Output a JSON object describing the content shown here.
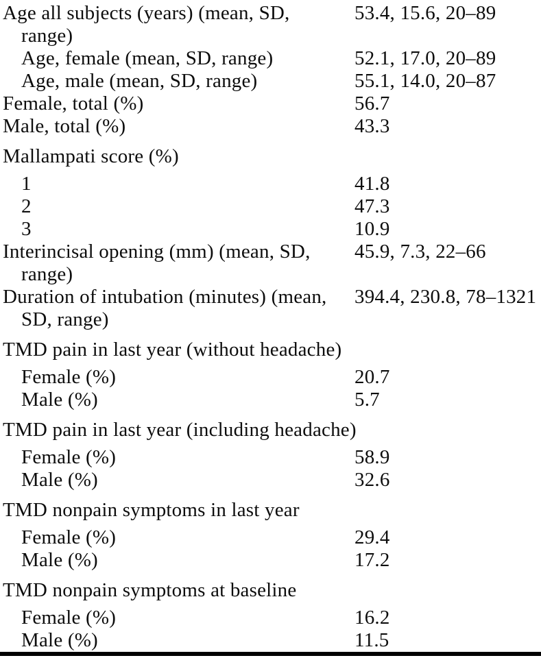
{
  "table": {
    "rows": [
      {
        "indent": 0,
        "section": false,
        "label": "Age all subjects (years) (mean, SD, range)",
        "value": "53.4, 15.6, 20–89"
      },
      {
        "indent": 1,
        "section": false,
        "label": "Age, female (mean, SD, range)",
        "value": "52.1, 17.0, 20–89"
      },
      {
        "indent": 1,
        "section": false,
        "label": "Age, male (mean, SD, range)",
        "value": "55.1, 14.0, 20–87"
      },
      {
        "indent": 0,
        "section": false,
        "label": "Female, total (%)",
        "value": "56.7"
      },
      {
        "indent": 0,
        "section": false,
        "label": "Male, total (%)",
        "value": "43.3"
      },
      {
        "indent": 0,
        "section": true,
        "label": "Mallampati score (%)",
        "value": ""
      },
      {
        "indent": 1,
        "section": false,
        "label": "1",
        "value": "41.8"
      },
      {
        "indent": 1,
        "section": false,
        "label": "2",
        "value": "47.3"
      },
      {
        "indent": 1,
        "section": false,
        "label": "3",
        "value": "10.9"
      },
      {
        "indent": 0,
        "section": false,
        "label": "Interincisal opening (mm) (mean, SD, range)",
        "value": "45.9, 7.3, 22–66"
      },
      {
        "indent": 0,
        "section": false,
        "label": "Duration of intubation (minutes) (mean, SD, range)",
        "value": "394.4, 230.8, 78–1321"
      },
      {
        "indent": 0,
        "section": true,
        "label": "TMD pain in last year (without headache)",
        "value": ""
      },
      {
        "indent": 1,
        "section": false,
        "label": "Female (%)",
        "value": "20.7"
      },
      {
        "indent": 1,
        "section": false,
        "label": "Male (%)",
        "value": "5.7"
      },
      {
        "indent": 0,
        "section": true,
        "label": "TMD pain in last year (including headache)",
        "value": ""
      },
      {
        "indent": 1,
        "section": false,
        "label": "Female (%)",
        "value": "58.9"
      },
      {
        "indent": 1,
        "section": false,
        "label": "Male (%)",
        "value": "32.6"
      },
      {
        "indent": 0,
        "section": true,
        "label": "TMD nonpain symptoms in last year",
        "value": ""
      },
      {
        "indent": 1,
        "section": false,
        "label": "Female (%)",
        "value": "29.4"
      },
      {
        "indent": 1,
        "section": false,
        "label": "Male (%)",
        "value": "17.2"
      },
      {
        "indent": 0,
        "section": true,
        "label": "TMD nonpain symptoms at baseline",
        "value": ""
      },
      {
        "indent": 1,
        "section": false,
        "label": "Female (%)",
        "value": "16.2"
      },
      {
        "indent": 1,
        "section": false,
        "label": "Male (%)",
        "value": "11.5"
      }
    ],
    "colors": {
      "text": "#0d0d0d",
      "background": "#ffffff",
      "rule": "#000000"
    }
  }
}
